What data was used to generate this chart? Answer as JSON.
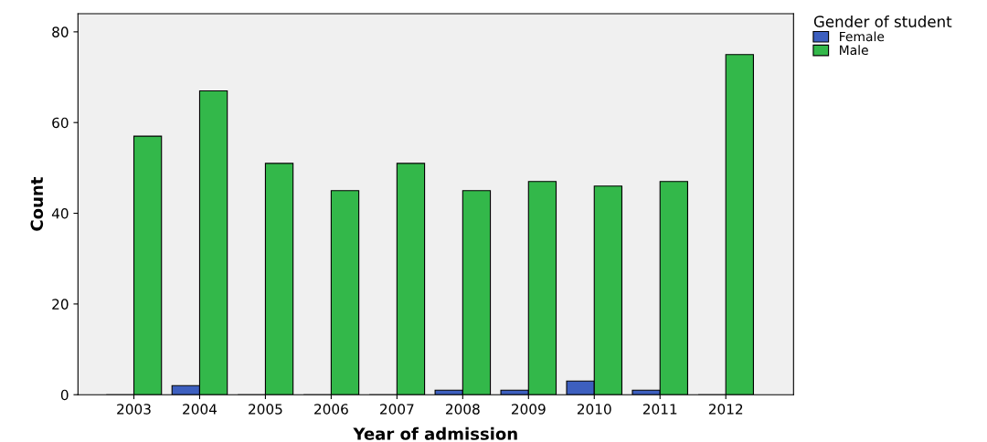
{
  "chart_data": {
    "type": "bar",
    "xlabel": "Year of admission",
    "ylabel": "Count",
    "legend_title": "Gender of student",
    "categories": [
      "2003",
      "2004",
      "2005",
      "2006",
      "2007",
      "2008",
      "2009",
      "2010",
      "2011",
      "2012"
    ],
    "series": [
      {
        "name": "Female",
        "color": "#3d5fbf",
        "values": [
          0,
          2,
          0,
          0,
          0,
          1,
          1,
          3,
          1,
          0
        ]
      },
      {
        "name": "Male",
        "color": "#33b84a",
        "values": [
          57,
          67,
          51,
          45,
          51,
          45,
          47,
          46,
          47,
          75
        ]
      }
    ],
    "ylim": [
      0,
      84
    ],
    "yticks": [
      0,
      20,
      40,
      60,
      80
    ],
    "grid": false,
    "legend": "top right"
  }
}
